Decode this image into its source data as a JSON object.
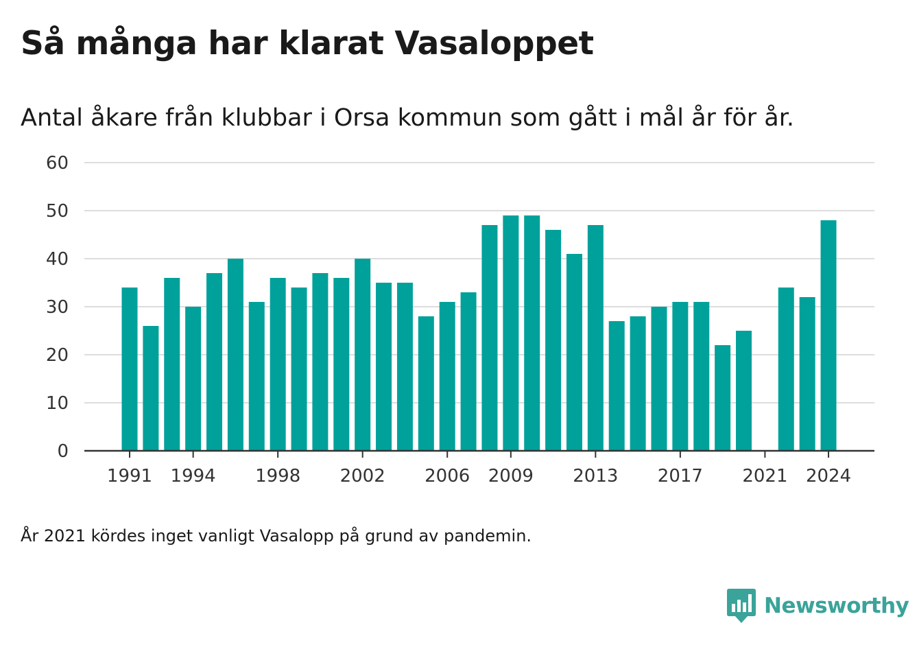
{
  "header": {
    "title": "Så många har klarat Vasaloppet",
    "subtitle": "Antal åkare från klubbar i Orsa kommun som gått i mål år för år."
  },
  "footer": {
    "note": "År 2021 kördes inget vanligt Vasalopp på grund av pandemin.",
    "brand": "Newsworthy",
    "brand_icon": "newsworthy-logo-icon",
    "brand_color": "#3aa39a"
  },
  "chart_data": {
    "type": "bar",
    "categories": [
      1991,
      1992,
      1993,
      1994,
      1995,
      1996,
      1997,
      1998,
      1999,
      2000,
      2001,
      2002,
      2003,
      2004,
      2005,
      2006,
      2007,
      2008,
      2009,
      2010,
      2011,
      2012,
      2013,
      2014,
      2015,
      2016,
      2017,
      2018,
      2019,
      2020,
      2021,
      2022,
      2023,
      2024
    ],
    "values": [
      34,
      26,
      36,
      30,
      37,
      40,
      31,
      36,
      34,
      37,
      36,
      40,
      35,
      35,
      28,
      31,
      33,
      47,
      49,
      49,
      46,
      41,
      47,
      27,
      28,
      30,
      31,
      31,
      22,
      25,
      null,
      34,
      32,
      48
    ],
    "x_tick_labels": [
      "1991",
      "1994",
      "1998",
      "2002",
      "2006",
      "2009",
      "2013",
      "2017",
      "2021",
      "2024"
    ],
    "y_ticks": [
      0,
      10,
      20,
      30,
      40,
      50,
      60
    ],
    "ylim": [
      0,
      60
    ],
    "grid": true,
    "bar_color": "#00a19a"
  }
}
